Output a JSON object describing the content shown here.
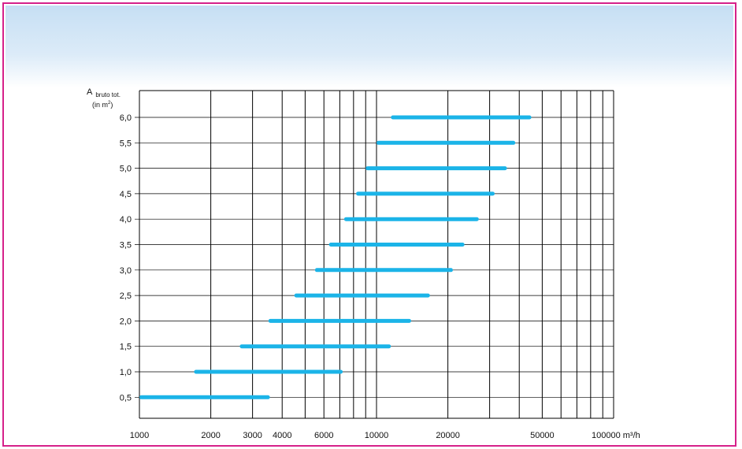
{
  "chart_data": {
    "type": "bar",
    "orientation": "horizontal-range",
    "x_scale": "log",
    "xlim": [
      1000,
      100000
    ],
    "x_unit": "m³/h",
    "x_ticks": [
      1000,
      2000,
      3000,
      4000,
      6000,
      10000,
      20000,
      50000,
      100000
    ],
    "x_tick_labels": [
      "1000",
      "2000",
      "3000",
      "4000",
      "6000",
      "10000",
      "20000",
      "50000",
      "100000 m³/h"
    ],
    "ylabel_main": "A",
    "ylabel_sub": "bruto tot.",
    "ylabel_unit": "(in m",
    "ylabel_unit_sup": "2",
    "ylabel_unit_close": ")",
    "categories": [
      "6,0",
      "5,5",
      "5,0",
      "4,5",
      "4,0",
      "3,5",
      "3,0",
      "2,5",
      "2,0",
      "1,5",
      "1,0",
      "0,5"
    ],
    "ranges": [
      [
        11500,
        45000
      ],
      [
        10000,
        38500
      ],
      [
        9000,
        35500
      ],
      [
        8200,
        31500
      ],
      [
        7300,
        27000
      ],
      [
        6300,
        23500
      ],
      [
        5500,
        21000
      ],
      [
        4500,
        16800
      ],
      [
        3500,
        14000
      ],
      [
        2650,
        11500
      ],
      [
        1700,
        7200
      ],
      [
        1000,
        3550
      ]
    ],
    "bar_color": "#1bb4e8",
    "grid": true
  }
}
